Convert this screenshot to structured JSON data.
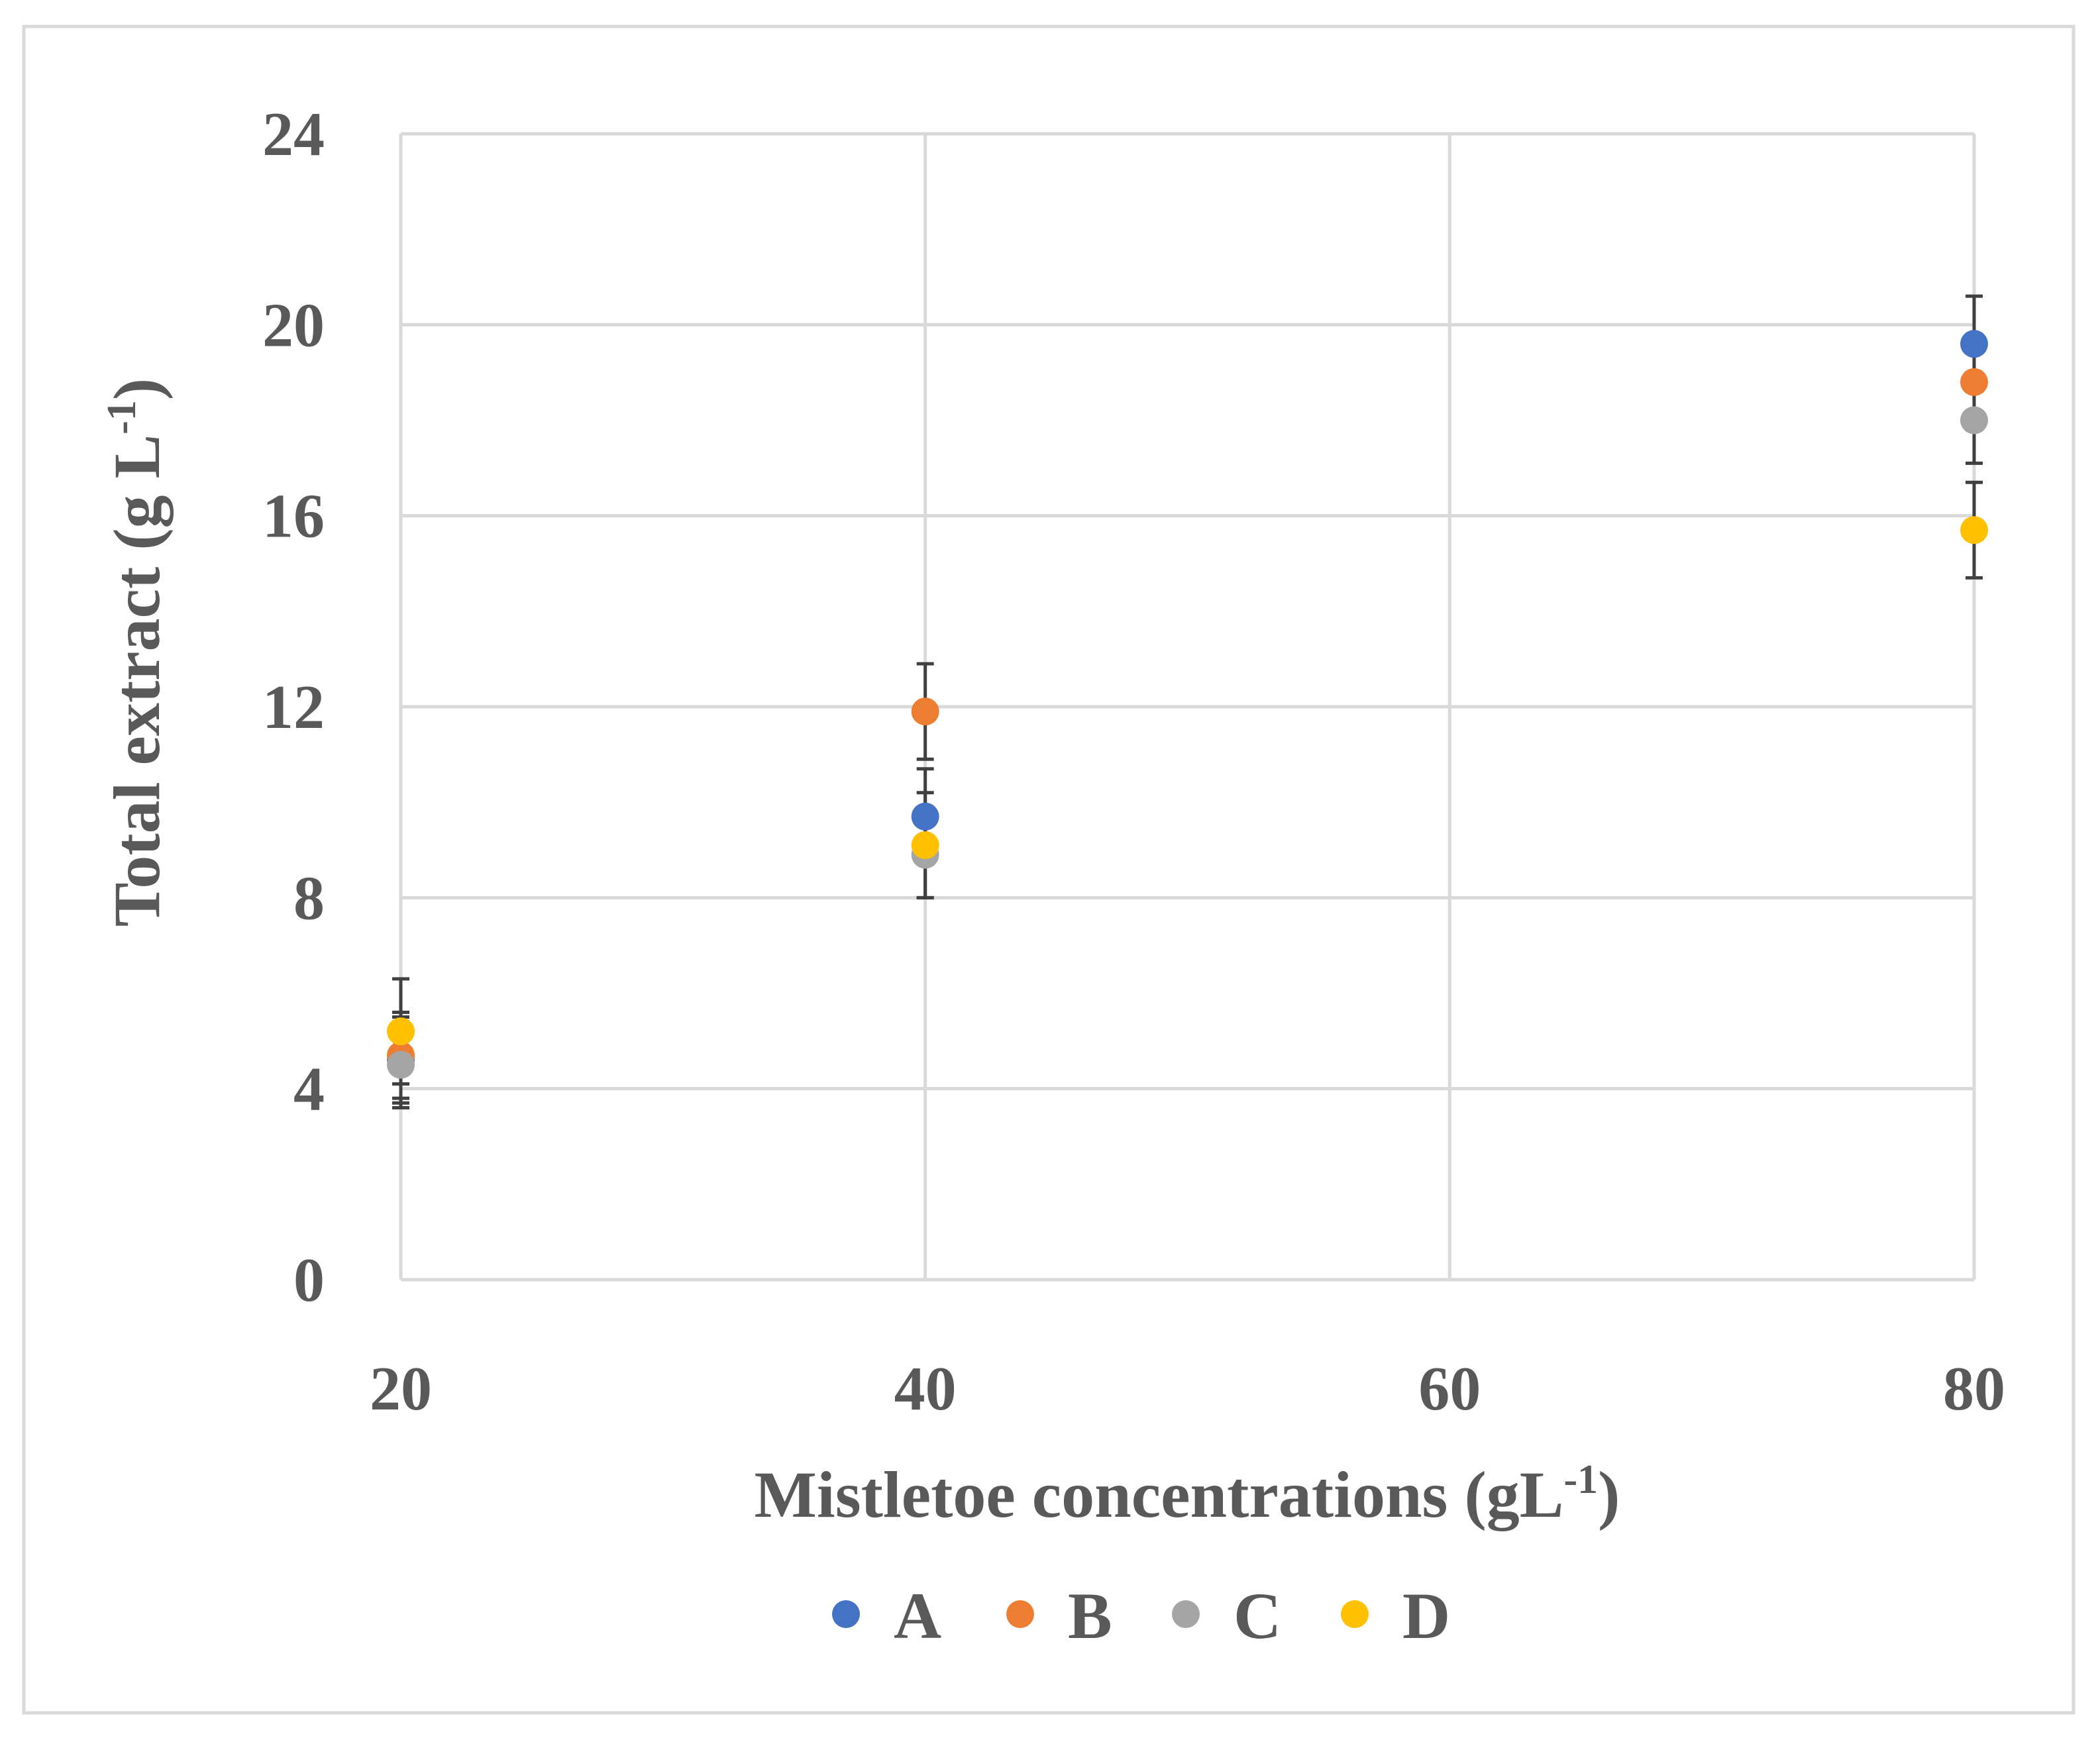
{
  "chart_data": {
    "type": "scatter",
    "title": "",
    "xlabel": "Mistletoe concentrations (gL",
    "xlabel_sup": "-1",
    "xlabel_end": ")",
    "ylabel": "Total extract (g L",
    "ylabel_sup": "-1",
    "ylabel_end": ")",
    "xlim": [
      20,
      80
    ],
    "ylim": [
      0,
      24
    ],
    "xticks": [
      "20",
      "40",
      "60",
      "80"
    ],
    "yticks": [
      "0",
      "4",
      "8",
      "12",
      "16",
      "20",
      "24"
    ],
    "grid": true,
    "legend_position": "bottom",
    "series": [
      {
        "name": "A",
        "color": "#4472C4",
        "x": [
          20,
          40,
          80
        ],
        "y": [
          4.6,
          9.7,
          19.6
        ],
        "err": [
          0.9,
          1.0,
          1.0
        ]
      },
      {
        "name": "B",
        "color": "#ED7D31",
        "x": [
          20,
          40,
          80
        ],
        "y": [
          4.7,
          11.9,
          18.8
        ],
        "err": [
          0.9,
          1.0,
          1.0
        ]
      },
      {
        "name": "C",
        "color": "#A5A5A5",
        "x": [
          20,
          40,
          80
        ],
        "y": [
          4.5,
          8.9,
          18.0
        ],
        "err": [
          0.9,
          0.9,
          0.9
        ]
      },
      {
        "name": "D",
        "color": "#FFC000",
        "x": [
          20,
          40,
          80
        ],
        "y": [
          5.2,
          9.1,
          15.7
        ],
        "err": [
          1.1,
          1.1,
          1.0
        ]
      }
    ]
  }
}
